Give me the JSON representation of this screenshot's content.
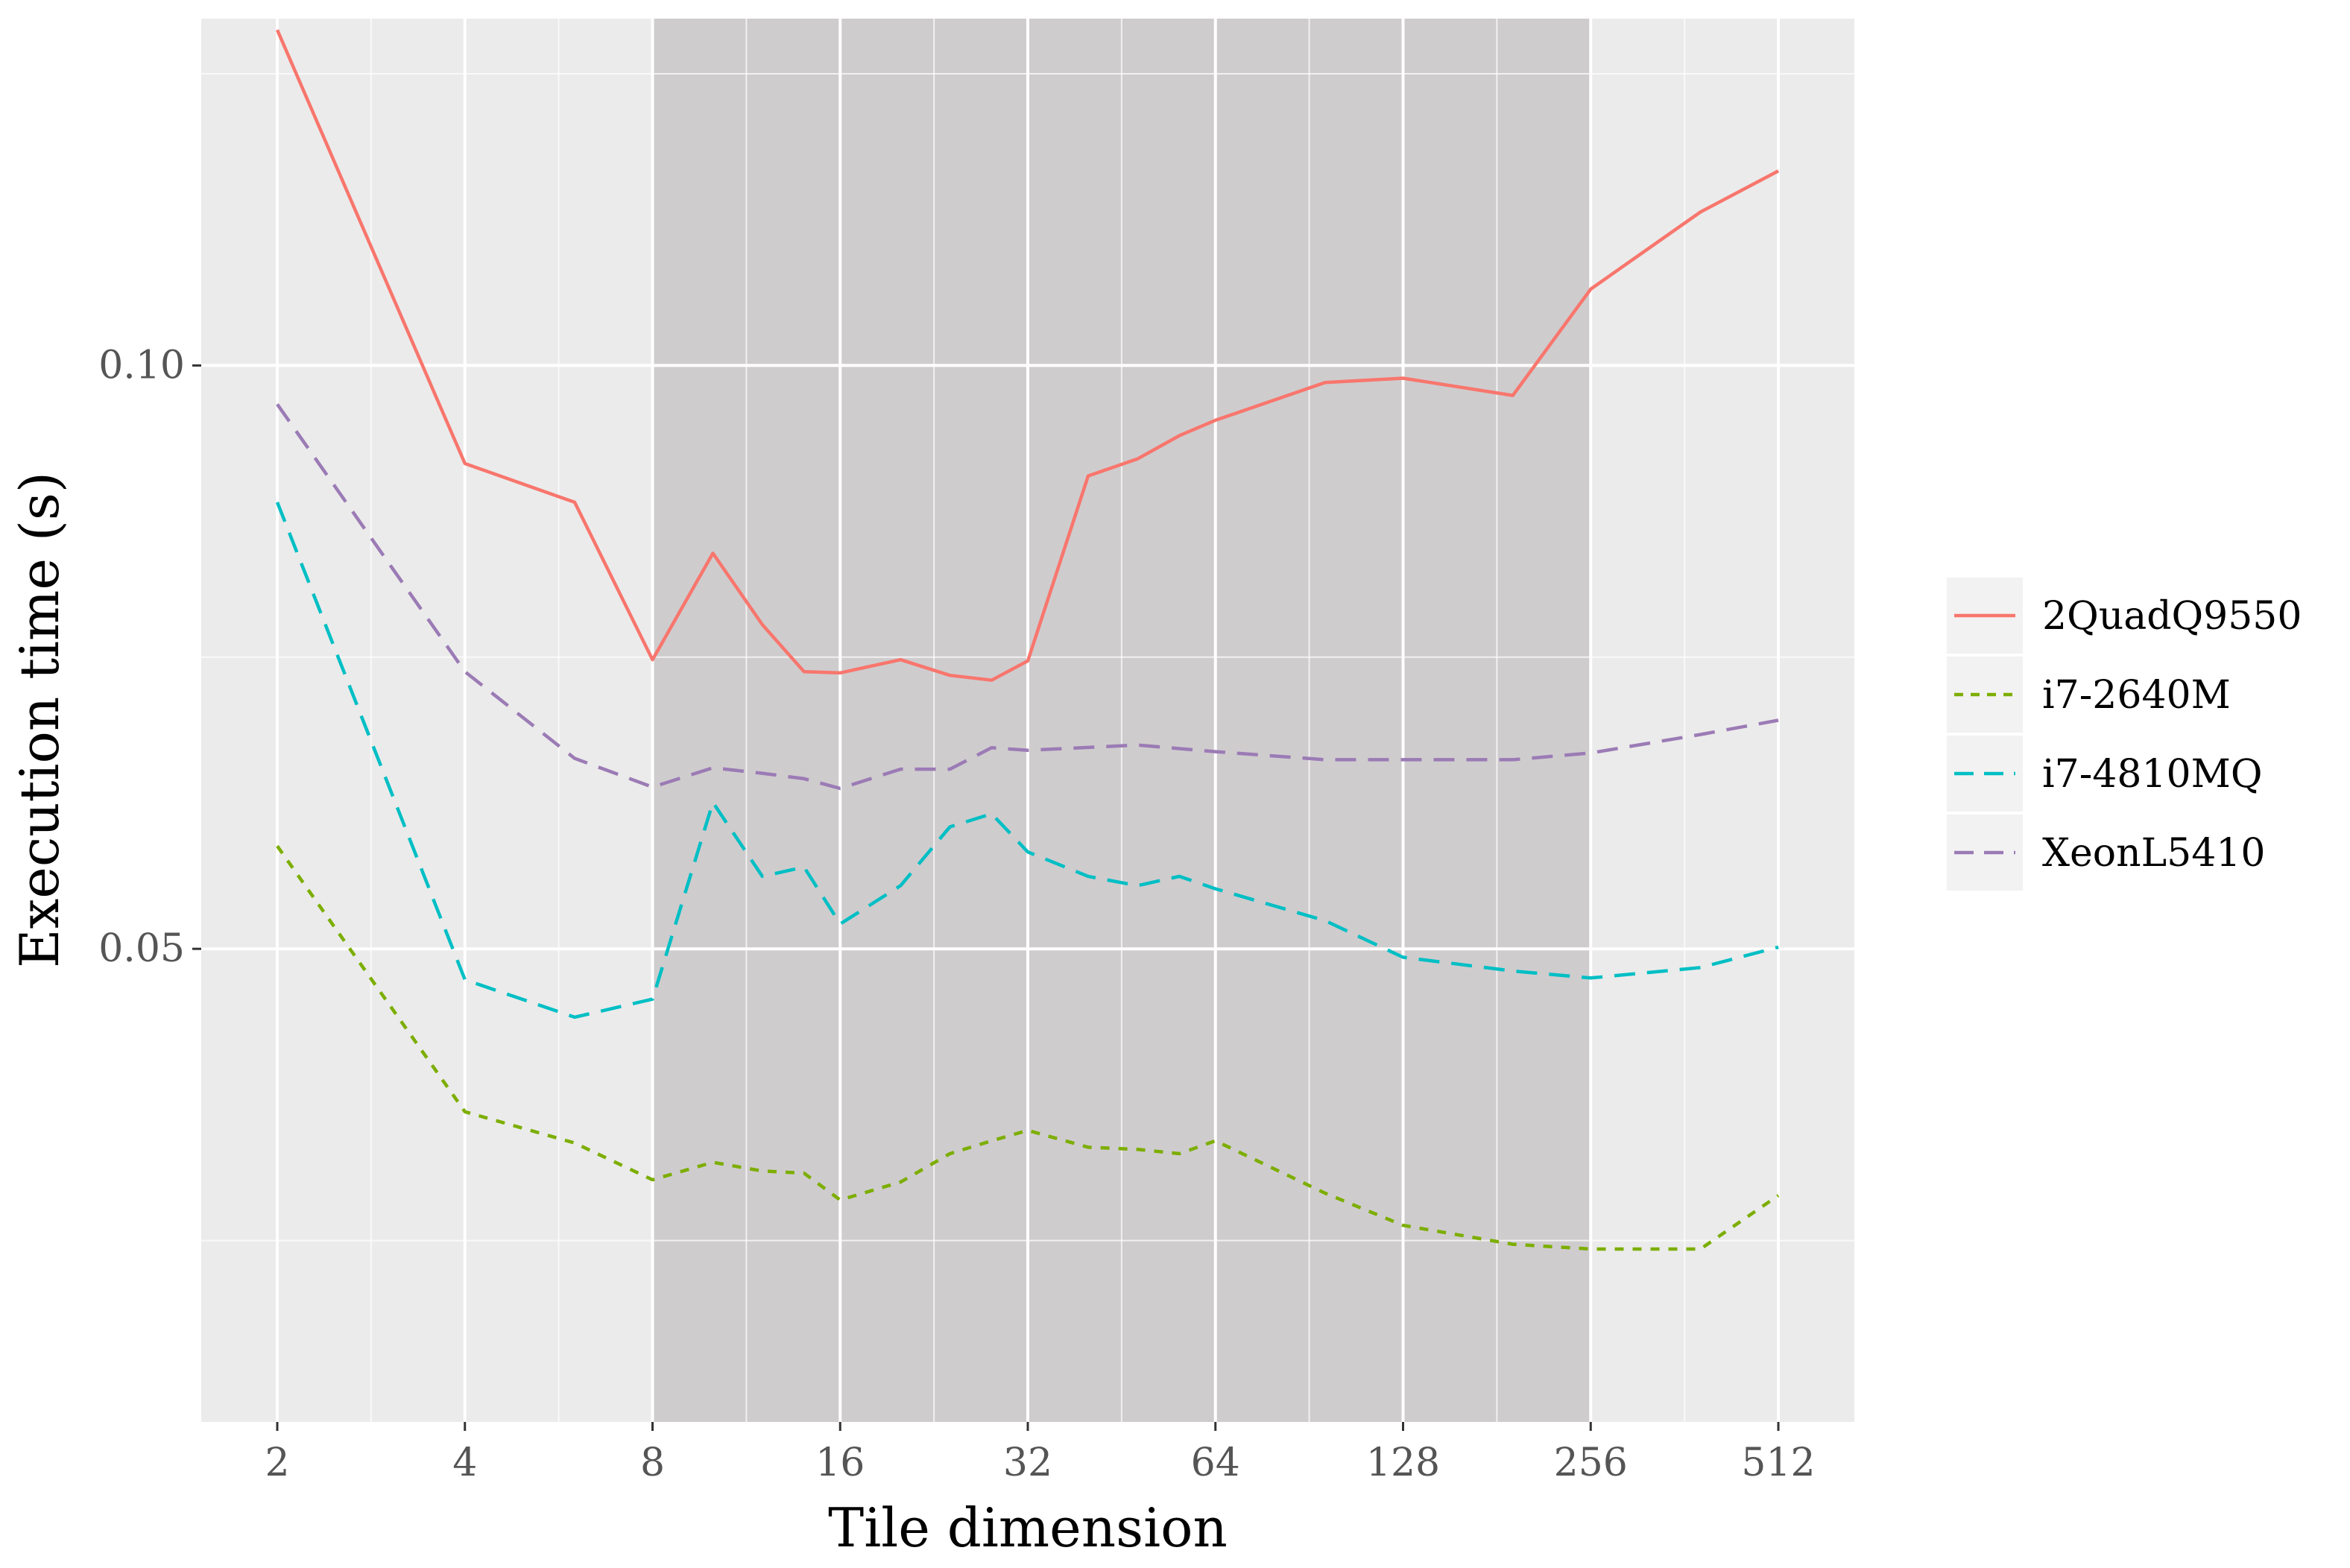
{
  "chart_data": {
    "type": "line",
    "xlabel": "Tile dimension",
    "ylabel": "Execution time (s)",
    "x_scale": "log2",
    "y_scale": "log10",
    "xlim": [
      2,
      512
    ],
    "ylim": [
      0.0285,
      0.151
    ],
    "x_ticks": [
      2,
      4,
      8,
      16,
      32,
      64,
      128,
      256,
      512
    ],
    "x_tick_labels": [
      "2",
      "4",
      "8",
      "16",
      "32",
      "64",
      "128",
      "256",
      "512"
    ],
    "y_ticks": [
      0.05,
      0.1
    ],
    "y_tick_labels": [
      "0.05",
      "0.10"
    ],
    "highlight_region": {
      "x_from": 8,
      "x_to": 256
    },
    "grid": true,
    "legend_position": "right",
    "series": [
      {
        "name": "2QuadQ9550",
        "color": "#F8766D",
        "dash": "solid",
        "points": [
          [
            2,
            0.149
          ],
          [
            4,
            0.089
          ],
          [
            6,
            0.085
          ],
          [
            8,
            0.0705
          ],
          [
            10,
            0.08
          ],
          [
            12,
            0.0735
          ],
          [
            14,
            0.0695
          ],
          [
            16,
            0.0694
          ],
          [
            20,
            0.0705
          ],
          [
            24,
            0.0692
          ],
          [
            28,
            0.0688
          ],
          [
            32,
            0.0704
          ],
          [
            40,
            0.0877
          ],
          [
            48,
            0.0895
          ],
          [
            56,
            0.092
          ],
          [
            64,
            0.0937
          ],
          [
            96,
            0.098
          ],
          [
            128,
            0.0985
          ],
          [
            192,
            0.0965
          ],
          [
            256,
            0.1095
          ],
          [
            384,
            0.12
          ],
          [
            512,
            0.126
          ]
        ]
      },
      {
        "name": "i7-2640M",
        "color": "#7CAE00",
        "dash": "short",
        "points": [
          [
            2,
            0.0565
          ],
          [
            4,
            0.0412
          ],
          [
            6,
            0.0397
          ],
          [
            8,
            0.038
          ],
          [
            10,
            0.0388
          ],
          [
            12,
            0.0384
          ],
          [
            14,
            0.0383
          ],
          [
            16,
            0.0371
          ],
          [
            20,
            0.0379
          ],
          [
            24,
            0.0392
          ],
          [
            28,
            0.0398
          ],
          [
            32,
            0.0403
          ],
          [
            40,
            0.0395
          ],
          [
            48,
            0.0394
          ],
          [
            56,
            0.0392
          ],
          [
            64,
            0.0398
          ],
          [
            96,
            0.0374
          ],
          [
            128,
            0.036
          ],
          [
            192,
            0.0352
          ],
          [
            256,
            0.035
          ],
          [
            384,
            0.035
          ],
          [
            512,
            0.0373
          ]
        ]
      },
      {
        "name": "i7-4810MQ",
        "color": "#00BFC4",
        "dash": "long",
        "points": [
          [
            2,
            0.085
          ],
          [
            4,
            0.0482
          ],
          [
            6,
            0.0461
          ],
          [
            8,
            0.0471
          ],
          [
            10,
            0.0595
          ],
          [
            12,
            0.0545
          ],
          [
            14,
            0.0551
          ],
          [
            16,
            0.0515
          ],
          [
            20,
            0.0539
          ],
          [
            24,
            0.0578
          ],
          [
            28,
            0.0587
          ],
          [
            32,
            0.0561
          ],
          [
            40,
            0.0545
          ],
          [
            48,
            0.0539
          ],
          [
            56,
            0.0545
          ],
          [
            64,
            0.0537
          ],
          [
            96,
            0.0517
          ],
          [
            128,
            0.0495
          ],
          [
            192,
            0.0487
          ],
          [
            256,
            0.0483
          ],
          [
            384,
            0.0489
          ],
          [
            512,
            0.0501
          ]
        ]
      },
      {
        "name": "XeonL5410",
        "color": "#9B7BB5",
        "dash": "long",
        "points": [
          [
            2,
            0.0955
          ],
          [
            4,
            0.0695
          ],
          [
            6,
            0.0627
          ],
          [
            8,
            0.0606
          ],
          [
            10,
            0.062
          ],
          [
            12,
            0.0616
          ],
          [
            14,
            0.0612
          ],
          [
            16,
            0.0605
          ],
          [
            20,
            0.0619
          ],
          [
            24,
            0.0619
          ],
          [
            28,
            0.0635
          ],
          [
            32,
            0.0633
          ],
          [
            48,
            0.0637
          ],
          [
            64,
            0.0632
          ],
          [
            96,
            0.0626
          ],
          [
            128,
            0.0626
          ],
          [
            192,
            0.0626
          ],
          [
            256,
            0.0631
          ],
          [
            384,
            0.0645
          ],
          [
            512,
            0.0656
          ]
        ]
      }
    ]
  }
}
